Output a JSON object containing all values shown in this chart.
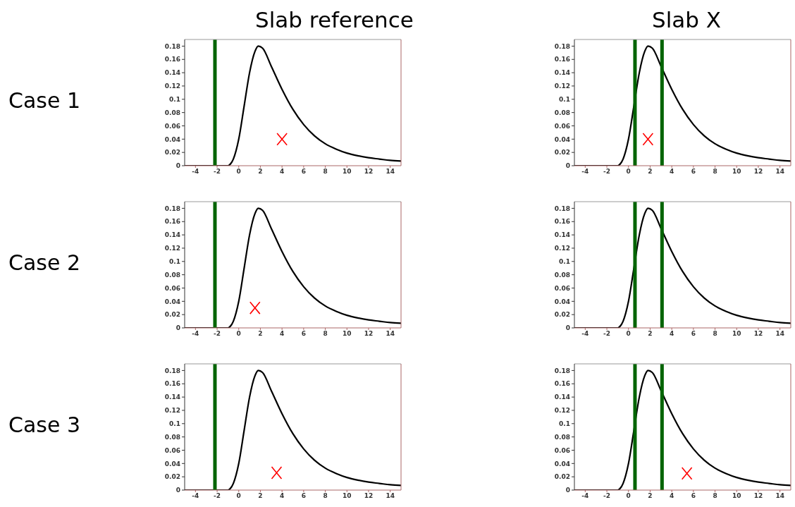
{
  "chart_data": [
    {
      "type": "line",
      "title": "Slab reference",
      "ylabel": "Case 1",
      "x": [
        -5,
        -1,
        -0.8,
        -0.5,
        0,
        0.5,
        1,
        1.5,
        1.8,
        2.2,
        3,
        4,
        5,
        6,
        7,
        8,
        9,
        10,
        11,
        12,
        13,
        14,
        15
      ],
      "series": [
        {
          "color": "#000000",
          "values": [
            0,
            0,
            0.002,
            0.01,
            0.04,
            0.09,
            0.14,
            0.172,
            0.18,
            0.177,
            0.15,
            0.115,
            0.085,
            0.062,
            0.045,
            0.033,
            0.025,
            0.019,
            0.015,
            0.012,
            0.01,
            0.008,
            0.007
          ]
        },
        {
          "type": "scatter",
          "marker": "cross",
          "color": "#ff0000",
          "x": [
            4
          ],
          "values": [
            0.04
          ]
        }
      ],
      "xlim": [
        -5,
        15
      ],
      "xticks": [
        -4,
        -2,
        0,
        2,
        4,
        6,
        8,
        10,
        12,
        14
      ],
      "ylim": [
        0,
        0.19
      ],
      "yticks": [
        0,
        0.02,
        0.04,
        0.06,
        0.08,
        0.1,
        0.12,
        0.14,
        0.16,
        0.18
      ],
      "ref_lines": [
        {
          "axis": "x",
          "value": -2.2,
          "color": "#006400"
        }
      ]
    },
    {
      "type": "line",
      "title": "Slab X",
      "x": [
        -5,
        -1,
        -0.8,
        -0.5,
        0,
        0.5,
        1,
        1.5,
        1.8,
        2.2,
        3,
        4,
        5,
        6,
        7,
        8,
        9,
        10,
        11,
        12,
        13,
        14,
        15
      ],
      "series": [
        {
          "color": "#000000",
          "values": [
            0,
            0,
            0.002,
            0.01,
            0.04,
            0.09,
            0.14,
            0.172,
            0.18,
            0.177,
            0.15,
            0.115,
            0.085,
            0.062,
            0.045,
            0.033,
            0.025,
            0.019,
            0.015,
            0.012,
            0.01,
            0.008,
            0.007
          ]
        },
        {
          "type": "scatter",
          "marker": "cross",
          "color": "#ff0000",
          "x": [
            1.8
          ],
          "values": [
            0.04
          ]
        }
      ],
      "xlim": [
        -5,
        15
      ],
      "xticks": [
        -4,
        -2,
        0,
        2,
        4,
        6,
        8,
        10,
        12,
        14
      ],
      "ylim": [
        0,
        0.19
      ],
      "yticks": [
        0,
        0.02,
        0.04,
        0.06,
        0.08,
        0.1,
        0.12,
        0.14,
        0.16,
        0.18
      ],
      "ref_lines": [
        {
          "axis": "x",
          "value": 0.6,
          "color": "#006400"
        },
        {
          "axis": "x",
          "value": 3.1,
          "color": "#006400"
        }
      ]
    },
    {
      "type": "line",
      "ylabel": "Case 2",
      "x": [
        -5,
        -1,
        -0.8,
        -0.5,
        0,
        0.5,
        1,
        1.5,
        1.8,
        2.2,
        3,
        4,
        5,
        6,
        7,
        8,
        9,
        10,
        11,
        12,
        13,
        14,
        15
      ],
      "series": [
        {
          "color": "#000000",
          "values": [
            0,
            0,
            0.002,
            0.01,
            0.04,
            0.09,
            0.14,
            0.172,
            0.18,
            0.177,
            0.15,
            0.115,
            0.085,
            0.062,
            0.045,
            0.033,
            0.025,
            0.019,
            0.015,
            0.012,
            0.01,
            0.008,
            0.007
          ]
        },
        {
          "type": "scatter",
          "marker": "cross",
          "color": "#ff0000",
          "x": [
            1.5
          ],
          "values": [
            0.03
          ]
        }
      ],
      "xlim": [
        -5,
        15
      ],
      "xticks": [
        -4,
        -2,
        0,
        2,
        4,
        6,
        8,
        10,
        12,
        14
      ],
      "ylim": [
        0,
        0.19
      ],
      "yticks": [
        0,
        0.02,
        0.04,
        0.06,
        0.08,
        0.1,
        0.12,
        0.14,
        0.16,
        0.18
      ],
      "ref_lines": [
        {
          "axis": "x",
          "value": -2.2,
          "color": "#006400"
        }
      ]
    },
    {
      "type": "line",
      "x": [
        -5,
        -1,
        -0.8,
        -0.5,
        0,
        0.5,
        1,
        1.5,
        1.8,
        2.2,
        3,
        4,
        5,
        6,
        7,
        8,
        9,
        10,
        11,
        12,
        13,
        14,
        15
      ],
      "series": [
        {
          "color": "#000000",
          "values": [
            0,
            0,
            0.002,
            0.01,
            0.04,
            0.09,
            0.14,
            0.172,
            0.18,
            0.177,
            0.15,
            0.115,
            0.085,
            0.062,
            0.045,
            0.033,
            0.025,
            0.019,
            0.015,
            0.012,
            0.01,
            0.008,
            0.007
          ]
        }
      ],
      "xlim": [
        -5,
        15
      ],
      "xticks": [
        -4,
        -2,
        0,
        2,
        4,
        6,
        8,
        10,
        12,
        14
      ],
      "ylim": [
        0,
        0.19
      ],
      "yticks": [
        0,
        0.02,
        0.04,
        0.06,
        0.08,
        0.1,
        0.12,
        0.14,
        0.16,
        0.18
      ],
      "ref_lines": [
        {
          "axis": "x",
          "value": 0.6,
          "color": "#006400"
        },
        {
          "axis": "x",
          "value": 3.1,
          "color": "#006400"
        }
      ]
    },
    {
      "type": "line",
      "ylabel": "Case 3",
      "x": [
        -5,
        -1,
        -0.8,
        -0.5,
        0,
        0.5,
        1,
        1.5,
        1.8,
        2.2,
        3,
        4,
        5,
        6,
        7,
        8,
        9,
        10,
        11,
        12,
        13,
        14,
        15
      ],
      "series": [
        {
          "color": "#000000",
          "values": [
            0,
            0,
            0.002,
            0.01,
            0.04,
            0.09,
            0.14,
            0.172,
            0.18,
            0.177,
            0.15,
            0.115,
            0.085,
            0.062,
            0.045,
            0.033,
            0.025,
            0.019,
            0.015,
            0.012,
            0.01,
            0.008,
            0.007
          ]
        },
        {
          "type": "scatter",
          "marker": "cross",
          "color": "#ff0000",
          "x": [
            3.5
          ],
          "values": [
            0.026
          ]
        }
      ],
      "xlim": [
        -5,
        15
      ],
      "xticks": [
        -4,
        -2,
        0,
        2,
        4,
        6,
        8,
        10,
        12,
        14
      ],
      "ylim": [
        0,
        0.19
      ],
      "yticks": [
        0,
        0.02,
        0.04,
        0.06,
        0.08,
        0.1,
        0.12,
        0.14,
        0.16,
        0.18
      ],
      "ref_lines": [
        {
          "axis": "x",
          "value": -2.2,
          "color": "#006400"
        }
      ]
    },
    {
      "type": "line",
      "x": [
        -5,
        -1,
        -0.8,
        -0.5,
        0,
        0.5,
        1,
        1.5,
        1.8,
        2.2,
        3,
        4,
        5,
        6,
        7,
        8,
        9,
        10,
        11,
        12,
        13,
        14,
        15
      ],
      "series": [
        {
          "color": "#000000",
          "values": [
            0,
            0,
            0.002,
            0.01,
            0.04,
            0.09,
            0.14,
            0.172,
            0.18,
            0.177,
            0.15,
            0.115,
            0.085,
            0.062,
            0.045,
            0.033,
            0.025,
            0.019,
            0.015,
            0.012,
            0.01,
            0.008,
            0.007
          ]
        },
        {
          "type": "scatter",
          "marker": "cross",
          "color": "#ff0000",
          "x": [
            5.4
          ],
          "values": [
            0.025
          ]
        }
      ],
      "xlim": [
        -5,
        15
      ],
      "xticks": [
        -4,
        -2,
        0,
        2,
        4,
        6,
        8,
        10,
        12,
        14
      ],
      "ylim": [
        0,
        0.19
      ],
      "yticks": [
        0,
        0.02,
        0.04,
        0.06,
        0.08,
        0.1,
        0.12,
        0.14,
        0.16,
        0.18
      ],
      "ref_lines": [
        {
          "axis": "x",
          "value": 0.6,
          "color": "#006400"
        },
        {
          "axis": "x",
          "value": 3.1,
          "color": "#006400"
        }
      ]
    }
  ]
}
